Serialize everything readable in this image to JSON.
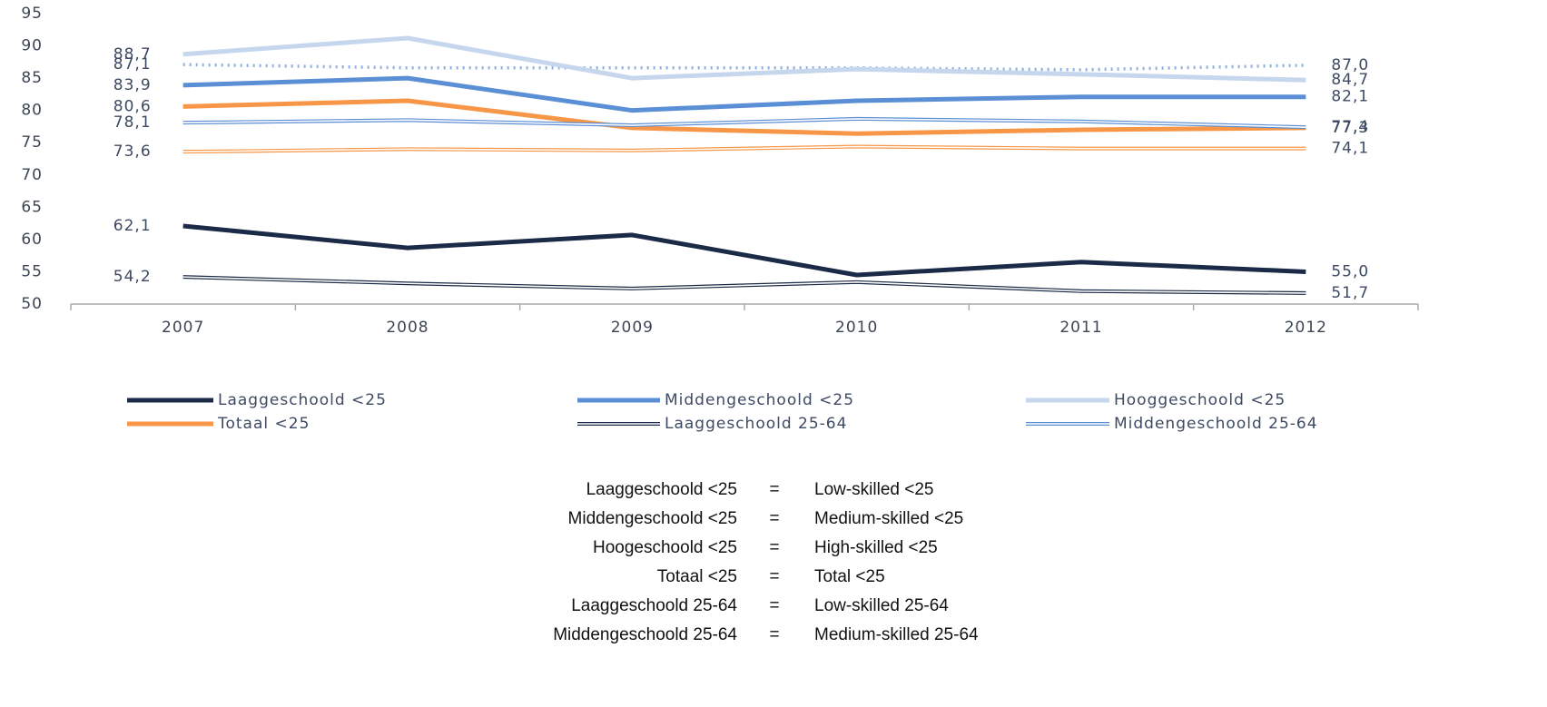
{
  "chart_data": {
    "type": "line",
    "categories": [
      "2007",
      "2008",
      "2009",
      "2010",
      "2011",
      "2012"
    ],
    "ylim": [
      50,
      95
    ],
    "yticks": [
      50,
      55,
      60,
      65,
      70,
      75,
      80,
      85,
      90,
      95
    ],
    "legend": "bottom",
    "series": [
      {
        "name": "Laaggeschoold <25",
        "color": "#1b2a47",
        "style": "solid",
        "values": [
          62.1,
          58.7,
          60.7,
          54.5,
          56.5,
          55.0
        ],
        "value_labels": [
          "62,1",
          null,
          null,
          null,
          null,
          "55,0"
        ]
      },
      {
        "name": "Middengeschoold <25",
        "color": "#5a8ed5",
        "style": "solid",
        "values": [
          83.9,
          85.0,
          80.0,
          81.5,
          82.1,
          82.1
        ],
        "value_labels": [
          "83,9",
          null,
          null,
          null,
          null,
          "82,1"
        ]
      },
      {
        "name": "Hooggeschoold <25",
        "color": "#c6d6ed",
        "style": "solid",
        "values": [
          88.7,
          91.2,
          85.0,
          86.4,
          85.6,
          84.7
        ],
        "value_labels": [
          "88,7",
          null,
          null,
          null,
          null,
          "84,7"
        ]
      },
      {
        "name": "Totaal <25",
        "color": "#f79646",
        "style": "solid",
        "values": [
          80.6,
          81.5,
          77.3,
          76.4,
          77.0,
          77.3
        ],
        "value_labels": [
          "80,6",
          null,
          null,
          null,
          null,
          "77,3"
        ]
      },
      {
        "name": "Laaggeschoold 25-64",
        "color": "#1b2a47",
        "style": "double",
        "values": [
          54.2,
          53.2,
          52.4,
          53.4,
          52.0,
          51.7
        ],
        "value_labels": [
          "54,2",
          null,
          null,
          null,
          null,
          "51,7"
        ]
      },
      {
        "name": "Middengeschoold 25-64",
        "color": "#5a8ed5",
        "style": "double",
        "values": [
          78.1,
          78.5,
          77.7,
          78.7,
          78.3,
          77.4
        ],
        "value_labels": [
          "78,1",
          null,
          null,
          null,
          null,
          "77,4"
        ]
      },
      {
        "color": "#8fb0e0",
        "style": "dotted",
        "values": [
          87.1,
          86.6,
          86.6,
          86.6,
          86.3,
          87.0
        ],
        "value_labels": [
          "87,1",
          null,
          null,
          null,
          null,
          "87,0"
        ]
      },
      {
        "color": "#f79646",
        "style": "double",
        "values": [
          73.6,
          74.0,
          73.8,
          74.4,
          74.1,
          74.1
        ],
        "value_labels": [
          "73,6",
          null,
          null,
          null,
          null,
          "74,1"
        ]
      }
    ]
  },
  "glossary": {
    "rows": [
      [
        "Laaggeschoold <25",
        "=",
        "Low-skilled <25"
      ],
      [
        "Middengeschoold <25",
        "=",
        "Medium-skilled <25"
      ],
      [
        "Hoogeschoold <25",
        "=",
        "High-skilled <25"
      ],
      [
        "Totaal <25",
        "=",
        "Total <25"
      ],
      [
        "Laaggeschoold 25-64",
        "=",
        "Low-skilled 25-64"
      ],
      [
        "Middengeschoold 25-64",
        "=",
        "Medium-skilled 25-64"
      ]
    ]
  }
}
